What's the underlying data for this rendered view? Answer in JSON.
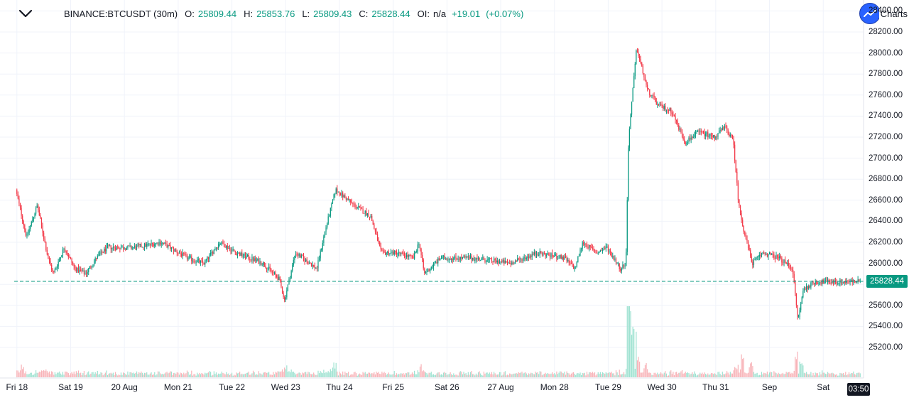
{
  "header": {
    "symbol": "BINANCE:BTCUSDT (30m)",
    "open_label": "O:",
    "open_value": "25809.44",
    "high_label": "H:",
    "high_value": "25853.76",
    "low_label": "L:",
    "low_value": "25809.43",
    "close_label": "C:",
    "close_value": "25828.44",
    "oi_label": "OI:",
    "oi_value": "n/a",
    "change": "+19.01",
    "change_pct": "(+0.07%)"
  },
  "brand": {
    "text": "Charts"
  },
  "last_price": {
    "value": 25828.44,
    "label": "25828.44"
  },
  "countdown": "03:50",
  "colors": {
    "up": "#089981",
    "down": "#f23645",
    "up_volume": "#9ee2d1",
    "down_volume": "#f8b3b8",
    "grid": "#f0f3fa",
    "accent": "#2962ff"
  },
  "chart_data": {
    "type": "candlestick",
    "symbol": "BINANCE:BTCUSDT",
    "interval": "30m",
    "y_ticks": [
      25200,
      25400,
      25600,
      25800,
      26000,
      26200,
      26400,
      26600,
      26800,
      27000,
      27200,
      27400,
      27600,
      27800,
      28000,
      28200,
      28400
    ],
    "y_tick_labels": [
      "25200.00",
      "25400.00",
      "25600.00",
      "25800.00",
      "26000.00",
      "26200.00",
      "26400.00",
      "26600.00",
      "26800.00",
      "27000.00",
      "27200.00",
      "27400.00",
      "27600.00",
      "27800.00",
      "28000.00",
      "28200.00",
      "28400.00"
    ],
    "ylim": [
      25070,
      28470
    ],
    "x_ticks": [
      {
        "label": "Fri 18",
        "day": 0
      },
      {
        "label": "Sat 19",
        "day": 1
      },
      {
        "label": "20 Aug",
        "day": 2
      },
      {
        "label": "Mon 21",
        "day": 3
      },
      {
        "label": "Tue 22",
        "day": 4
      },
      {
        "label": "Wed 23",
        "day": 5
      },
      {
        "label": "Thu 24",
        "day": 6
      },
      {
        "label": "Fri 25",
        "day": 7
      },
      {
        "label": "Sat 26",
        "day": 8
      },
      {
        "label": "27 Aug",
        "day": 9
      },
      {
        "label": "Mon 28",
        "day": 10
      },
      {
        "label": "Tue 29",
        "day": 11
      },
      {
        "label": "Wed 30",
        "day": 12
      },
      {
        "label": "Thu 31",
        "day": 13
      },
      {
        "label": "Sep",
        "day": 14
      },
      {
        "label": "Sat",
        "day": 15
      }
    ],
    "xlim_days": [
      -0.05,
      15.75
    ],
    "path_anchors": [
      {
        "day": 0.0,
        "price": 26700
      },
      {
        "day": 0.2,
        "price": 26250
      },
      {
        "day": 0.4,
        "price": 26550
      },
      {
        "day": 0.6,
        "price": 26050
      },
      {
        "day": 0.7,
        "price": 25900
      },
      {
        "day": 0.9,
        "price": 26150
      },
      {
        "day": 1.1,
        "price": 25950
      },
      {
        "day": 1.3,
        "price": 25900
      },
      {
        "day": 1.5,
        "price": 26050
      },
      {
        "day": 1.7,
        "price": 26150
      },
      {
        "day": 2.2,
        "price": 26150
      },
      {
        "day": 2.7,
        "price": 26200
      },
      {
        "day": 3.2,
        "price": 26050
      },
      {
        "day": 3.5,
        "price": 26000
      },
      {
        "day": 3.8,
        "price": 26200
      },
      {
        "day": 4.1,
        "price": 26100
      },
      {
        "day": 4.6,
        "price": 26000
      },
      {
        "day": 4.9,
        "price": 25850
      },
      {
        "day": 5.0,
        "price": 25650
      },
      {
        "day": 5.2,
        "price": 26100
      },
      {
        "day": 5.6,
        "price": 25950
      },
      {
        "day": 5.75,
        "price": 26300
      },
      {
        "day": 5.95,
        "price": 26700
      },
      {
        "day": 6.3,
        "price": 26550
      },
      {
        "day": 6.6,
        "price": 26450
      },
      {
        "day": 6.8,
        "price": 26100
      },
      {
        "day": 7.1,
        "price": 26100
      },
      {
        "day": 7.4,
        "price": 26050
      },
      {
        "day": 7.5,
        "price": 26200
      },
      {
        "day": 7.6,
        "price": 25900
      },
      {
        "day": 7.9,
        "price": 26050
      },
      {
        "day": 8.5,
        "price": 26050
      },
      {
        "day": 9.2,
        "price": 26000
      },
      {
        "day": 9.7,
        "price": 26100
      },
      {
        "day": 10.2,
        "price": 26050
      },
      {
        "day": 10.4,
        "price": 25950
      },
      {
        "day": 10.55,
        "price": 26200
      },
      {
        "day": 10.8,
        "price": 26100
      },
      {
        "day": 11.0,
        "price": 26150
      },
      {
        "day": 11.25,
        "price": 25950
      },
      {
        "day": 11.35,
        "price": 26000
      },
      {
        "day": 11.4,
        "price": 27200
      },
      {
        "day": 11.55,
        "price": 28050
      },
      {
        "day": 11.75,
        "price": 27650
      },
      {
        "day": 11.95,
        "price": 27500
      },
      {
        "day": 12.2,
        "price": 27450
      },
      {
        "day": 12.45,
        "price": 27150
      },
      {
        "day": 12.7,
        "price": 27250
      },
      {
        "day": 13.0,
        "price": 27200
      },
      {
        "day": 13.2,
        "price": 27300
      },
      {
        "day": 13.35,
        "price": 27150
      },
      {
        "day": 13.45,
        "price": 26550
      },
      {
        "day": 13.55,
        "price": 26300
      },
      {
        "day": 13.7,
        "price": 26000
      },
      {
        "day": 13.9,
        "price": 26100
      },
      {
        "day": 14.2,
        "price": 26050
      },
      {
        "day": 14.45,
        "price": 25950
      },
      {
        "day": 14.55,
        "price": 25450
      },
      {
        "day": 14.65,
        "price": 25750
      },
      {
        "day": 14.85,
        "price": 25820
      },
      {
        "day": 15.7,
        "price": 25828
      }
    ],
    "volume_spikes": [
      {
        "day": 11.38,
        "scale": 6.0
      },
      {
        "day": 11.45,
        "scale": 5.0
      },
      {
        "day": 11.55,
        "scale": 4.2
      },
      {
        "day": 11.7,
        "scale": 2.5
      },
      {
        "day": 13.5,
        "scale": 3.0
      },
      {
        "day": 13.65,
        "scale": 2.2
      },
      {
        "day": 14.5,
        "scale": 2.5
      },
      {
        "day": 14.6,
        "scale": 2.0
      },
      {
        "day": 5.0,
        "scale": 2.0
      },
      {
        "day": 5.9,
        "scale": 2.5
      },
      {
        "day": 0.1,
        "scale": 1.6
      },
      {
        "day": 7.5,
        "scale": 1.8
      }
    ]
  }
}
